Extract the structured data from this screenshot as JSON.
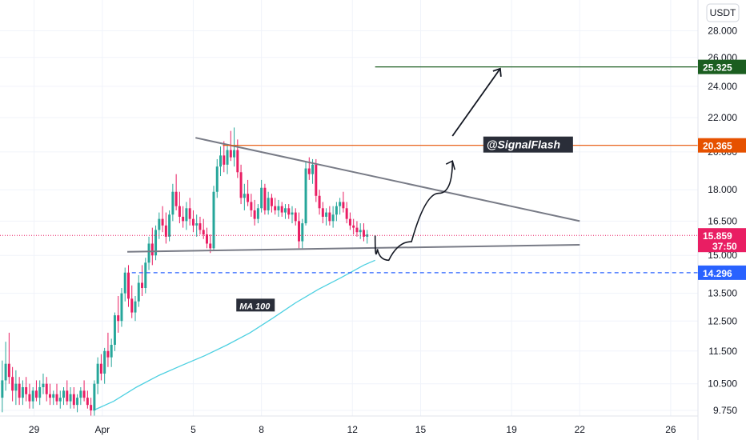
{
  "chart_data": {
    "type": "candlestick",
    "quote_currency": "USDT",
    "colors": {
      "up": "#26a69a",
      "down": "#e91e63",
      "ma": "#4dd0e1",
      "resistance": "#e65100",
      "target": "#1b5e20",
      "support_dash": "#2962ff",
      "current": "#e91e63"
    },
    "grid": true,
    "log_scale": true,
    "ylim": [
      9.6,
      30.5
    ],
    "y_ticks": [
      "28.000",
      "26.000",
      "24.000",
      "22.000",
      "20.000",
      "18.000",
      "16.500",
      "15.000",
      "13.500",
      "12.500",
      "11.500",
      "10.500",
      "9.750"
    ],
    "y_tick_values": [
      28,
      26,
      24,
      22,
      20,
      18,
      16.5,
      15,
      13.5,
      12.5,
      11.5,
      10.5,
      9.75
    ],
    "x_ticks": [
      "29",
      "Apr",
      "5",
      "8",
      "12",
      "15",
      "19",
      "22",
      "26"
    ],
    "x_tick_pos": [
      -3,
      0,
      4,
      7,
      11,
      14,
      18,
      21,
      25
    ],
    "xlim": [
      -4.5,
      26.2
    ],
    "candles": [
      [
        -4.4,
        10.1,
        11.2,
        9.7,
        10.6
      ],
      [
        -4.25,
        10.6,
        11.8,
        10.3,
        11.1
      ],
      [
        -4.1,
        11.1,
        12.1,
        10.5,
        10.7
      ],
      [
        -3.95,
        10.7,
        11.0,
        10.0,
        10.3
      ],
      [
        -3.8,
        10.3,
        10.9,
        9.9,
        10.5
      ],
      [
        -3.65,
        10.5,
        10.7,
        9.9,
        10.1
      ],
      [
        -3.5,
        10.1,
        10.6,
        9.9,
        10.4
      ],
      [
        -3.35,
        10.4,
        10.7,
        10.0,
        10.2
      ],
      [
        -3.2,
        10.2,
        10.5,
        9.8,
        10.0
      ],
      [
        -3.05,
        10.0,
        10.4,
        9.8,
        10.3
      ],
      [
        -2.9,
        10.3,
        10.6,
        10.0,
        10.1
      ],
      [
        -2.75,
        10.1,
        10.6,
        9.9,
        10.4
      ],
      [
        -2.6,
        10.4,
        10.8,
        10.2,
        10.5
      ],
      [
        -2.45,
        10.5,
        10.7,
        10.0,
        10.2
      ],
      [
        -2.3,
        10.2,
        10.5,
        9.9,
        10.1
      ],
      [
        -2.15,
        10.1,
        10.3,
        9.9,
        10.2
      ],
      [
        -2.0,
        10.2,
        10.5,
        9.9,
        10.0
      ],
      [
        -1.85,
        10.0,
        10.3,
        9.8,
        10.1
      ],
      [
        -1.7,
        10.1,
        10.4,
        9.9,
        10.3
      ],
      [
        -1.55,
        10.3,
        10.6,
        9.9,
        10.0
      ],
      [
        -1.4,
        10.0,
        10.4,
        9.8,
        10.2
      ],
      [
        -1.25,
        10.2,
        10.4,
        9.8,
        9.9
      ],
      [
        -1.1,
        9.9,
        10.2,
        9.7,
        10.1
      ],
      [
        -0.95,
        10.1,
        10.4,
        9.9,
        10.3
      ],
      [
        -0.8,
        10.3,
        10.6,
        10.0,
        10.1
      ],
      [
        -0.65,
        10.1,
        10.3,
        9.8,
        9.9
      ],
      [
        -0.5,
        9.9,
        10.1,
        9.6,
        9.75
      ],
      [
        -0.35,
        9.75,
        10.6,
        9.6,
        10.5
      ],
      [
        -0.2,
        10.5,
        11.3,
        10.2,
        11.1
      ],
      [
        -0.05,
        11.1,
        11.4,
        10.6,
        10.8
      ],
      [
        0.1,
        10.8,
        11.6,
        10.5,
        11.5
      ],
      [
        0.25,
        11.5,
        12.1,
        11.0,
        11.3
      ],
      [
        0.4,
        11.3,
        11.9,
        11.0,
        11.7
      ],
      [
        0.55,
        11.7,
        12.8,
        11.5,
        12.7
      ],
      [
        0.7,
        12.7,
        13.4,
        12.1,
        12.5
      ],
      [
        0.85,
        12.5,
        13.7,
        12.3,
        13.5
      ],
      [
        1.0,
        13.5,
        14.5,
        13.2,
        14.3
      ],
      [
        1.15,
        14.3,
        14.6,
        13.0,
        13.3
      ],
      [
        1.3,
        13.3,
        13.8,
        12.6,
        12.8
      ],
      [
        1.45,
        12.8,
        13.4,
        12.5,
        13.2
      ],
      [
        1.6,
        13.2,
        14.2,
        13.0,
        13.9
      ],
      [
        1.75,
        13.9,
        14.6,
        13.4,
        13.7
      ],
      [
        1.9,
        13.7,
        14.9,
        13.5,
        14.7
      ],
      [
        2.05,
        14.7,
        15.8,
        14.4,
        15.5
      ],
      [
        2.2,
        15.5,
        16.2,
        14.6,
        15.0
      ],
      [
        2.35,
        15.0,
        16.3,
        14.8,
        16.1
      ],
      [
        2.5,
        16.1,
        16.9,
        15.7,
        16.6
      ],
      [
        2.65,
        16.6,
        17.2,
        16.0,
        16.3
      ],
      [
        2.8,
        16.3,
        16.9,
        15.5,
        15.8
      ],
      [
        2.95,
        15.8,
        17.0,
        15.6,
        16.8
      ],
      [
        3.1,
        16.8,
        18.3,
        16.5,
        17.9
      ],
      [
        3.25,
        17.9,
        18.8,
        17.0,
        17.2
      ],
      [
        3.4,
        17.2,
        17.9,
        16.4,
        16.7
      ],
      [
        3.55,
        16.7,
        17.2,
        16.2,
        16.5
      ],
      [
        3.7,
        16.5,
        17.4,
        16.1,
        17.1
      ],
      [
        3.85,
        17.1,
        17.6,
        16.3,
        16.6
      ],
      [
        4.0,
        16.6,
        17.0,
        16.0,
        16.3
      ],
      [
        4.15,
        16.3,
        16.8,
        15.8,
        16.4
      ],
      [
        4.3,
        16.4,
        16.7,
        15.9,
        16.1
      ],
      [
        4.45,
        16.1,
        16.6,
        15.7,
        15.9
      ],
      [
        4.6,
        15.9,
        16.2,
        15.3,
        15.5
      ],
      [
        4.75,
        15.5,
        15.9,
        15.1,
        15.3
      ],
      [
        4.9,
        15.3,
        18.2,
        15.2,
        17.9
      ],
      [
        5.05,
        17.9,
        19.6,
        17.6,
        19.2
      ],
      [
        5.2,
        19.2,
        20.3,
        18.7,
        19.8
      ],
      [
        5.35,
        19.8,
        20.6,
        18.9,
        19.3
      ],
      [
        5.5,
        19.3,
        20.4,
        18.8,
        20.1
      ],
      [
        5.65,
        20.1,
        21.2,
        19.5,
        19.7
      ],
      [
        5.8,
        19.7,
        21.4,
        19.2,
        20.1
      ],
      [
        5.95,
        20.1,
        20.7,
        18.6,
        18.9
      ],
      [
        6.1,
        18.9,
        19.3,
        17.3,
        17.6
      ],
      [
        6.25,
        17.6,
        18.3,
        17.0,
        17.8
      ],
      [
        6.4,
        17.8,
        18.5,
        17.2,
        17.4
      ],
      [
        6.55,
        17.4,
        17.8,
        16.7,
        17.0
      ],
      [
        6.7,
        17.0,
        17.5,
        16.3,
        16.6
      ],
      [
        6.85,
        16.6,
        17.3,
        16.4,
        17.1
      ],
      [
        7.0,
        17.1,
        18.5,
        16.9,
        18.1
      ],
      [
        7.15,
        18.1,
        18.3,
        16.8,
        17.0
      ],
      [
        7.3,
        17.0,
        17.9,
        16.8,
        17.6
      ],
      [
        7.45,
        17.6,
        17.8,
        16.9,
        17.2
      ],
      [
        7.6,
        17.2,
        17.6,
        16.8,
        17.0
      ],
      [
        7.75,
        17.0,
        17.5,
        16.7,
        17.2
      ],
      [
        7.9,
        17.2,
        17.4,
        16.7,
        16.9
      ],
      [
        8.05,
        16.9,
        17.3,
        16.6,
        17.1
      ],
      [
        8.2,
        17.1,
        17.3,
        16.6,
        16.8
      ],
      [
        8.35,
        16.8,
        17.2,
        16.4,
        16.9
      ],
      [
        8.5,
        16.9,
        17.1,
        16.3,
        16.5
      ],
      [
        8.65,
        16.5,
        16.9,
        15.3,
        15.6
      ],
      [
        8.8,
        15.6,
        16.6,
        15.3,
        16.4
      ],
      [
        8.95,
        16.4,
        19.5,
        16.3,
        19.1
      ],
      [
        9.1,
        19.1,
        19.7,
        18.5,
        18.8
      ],
      [
        9.25,
        18.8,
        19.6,
        18.3,
        19.3
      ],
      [
        9.4,
        19.3,
        19.6,
        17.4,
        17.7
      ],
      [
        9.55,
        17.7,
        18.0,
        16.8,
        17.1
      ],
      [
        9.7,
        17.1,
        17.4,
        16.4,
        16.7
      ],
      [
        9.85,
        16.7,
        17.1,
        16.3,
        16.9
      ],
      [
        10.0,
        16.9,
        17.2,
        16.3,
        16.5
      ],
      [
        10.15,
        16.5,
        17.2,
        16.2,
        16.8
      ],
      [
        10.3,
        16.8,
        17.4,
        16.5,
        17.2
      ],
      [
        10.45,
        17.2,
        17.6,
        16.8,
        17.4
      ],
      [
        10.6,
        17.4,
        17.9,
        16.9,
        17.1
      ],
      [
        10.75,
        17.1,
        17.4,
        16.4,
        16.6
      ],
      [
        10.9,
        16.6,
        16.9,
        16.1,
        16.3
      ],
      [
        11.05,
        16.3,
        16.6,
        15.9,
        16.2
      ],
      [
        11.2,
        16.2,
        16.5,
        15.8,
        16.0
      ],
      [
        11.35,
        16.0,
        16.4,
        15.7,
        16.1
      ],
      [
        11.5,
        16.1,
        16.4,
        15.6,
        15.8
      ],
      [
        11.65,
        15.8,
        16.1,
        15.5,
        15.9
      ]
    ],
    "ma100": {
      "name": "MA 100",
      "x": [
        -0.4,
        0.5,
        1.5,
        2.5,
        3.5,
        4.5,
        5.5,
        6.5,
        7.5,
        8.5,
        9.5,
        10.5,
        11.5,
        12.0
      ],
      "y": [
        9.75,
        10.0,
        10.4,
        10.75,
        11.05,
        11.35,
        11.7,
        12.1,
        12.6,
        13.15,
        13.65,
        14.1,
        14.6,
        14.8
      ]
    },
    "annotations": {
      "resistance": {
        "value": 20.365,
        "label": "20.365",
        "x_start": 5.3,
        "badge": "@SignalFlash",
        "badge_x": 16.9
      },
      "target": {
        "value": 25.325,
        "label": "25.325",
        "x_start": 12.0
      },
      "support": {
        "value": 14.296,
        "label": "14.296",
        "x_start": 1.3
      },
      "current": {
        "value": 15.859,
        "label": "15.859",
        "countdown": "37:50"
      },
      "upper_trendline": {
        "x": [
          4.1,
          21.0
        ],
        "y": [
          20.8,
          16.5
        ]
      },
      "lower_trendline": {
        "x": [
          1.1,
          21.0
        ],
        "y": [
          15.15,
          15.45
        ]
      },
      "forecast_curve": {
        "x": [
          12.0,
          12.2,
          13.0,
          14.2,
          15.4
        ],
        "y": [
          15.85,
          14.7,
          14.9,
          16.3,
          19.5
        ]
      },
      "arrow_up": {
        "x": [
          15.4,
          17.5
        ],
        "y": [
          20.9,
          25.2
        ]
      },
      "ma_label": {
        "text": "MA 100",
        "x": 6.0,
        "y": 12.95
      }
    }
  }
}
